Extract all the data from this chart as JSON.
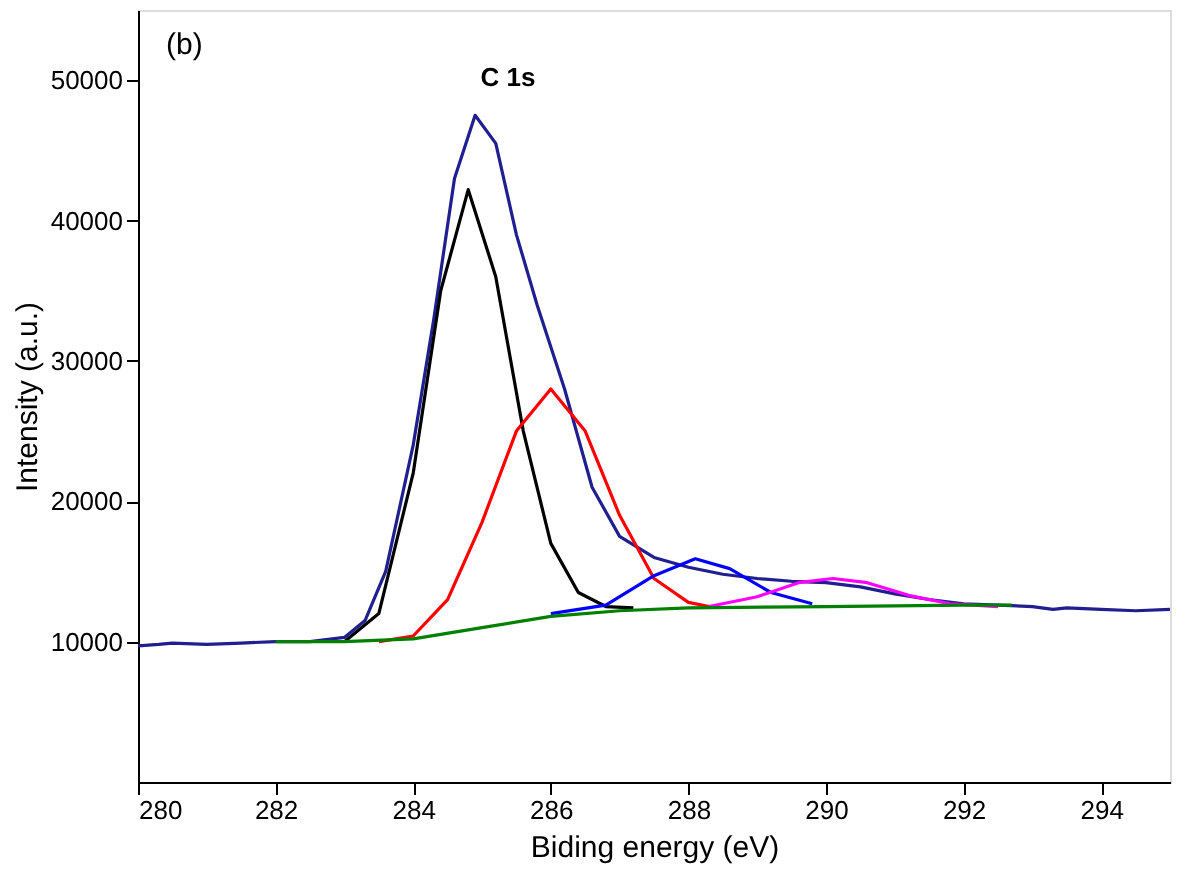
{
  "chart_data": {
    "type": "line",
    "xlabel": "Biding energy (eV)",
    "ylabel": "Intensity (a.u.)",
    "xlim": [
      280,
      295
    ],
    "xticks": [
      280,
      282,
      284,
      286,
      288,
      290,
      292,
      294
    ],
    "ylim": [
      0,
      55000
    ],
    "yticks": [
      10000,
      20000,
      30000,
      40000,
      50000
    ],
    "grid": false,
    "marker": "none",
    "line_style": "solid",
    "annotations": [
      "(b)",
      "C 1s"
    ],
    "series": [
      {
        "color": "#1f1f8f",
        "x": [
          280,
          280.3,
          280.5,
          281,
          281.5,
          282,
          282.5,
          283,
          283.3,
          283.6,
          284,
          284.3,
          284.6,
          284.9,
          285.2,
          285.5,
          285.8,
          286.2,
          286.6,
          287,
          287.5,
          288,
          288.5,
          289,
          289.5,
          290,
          290.5,
          291,
          291.5,
          292,
          292.5,
          293,
          293.3,
          293.5,
          294,
          294.5,
          295
        ],
        "values": [
          9700,
          9800,
          9900,
          9800,
          9900,
          10000,
          10000,
          10300,
          11500,
          15000,
          24000,
          33000,
          43000,
          47500,
          45500,
          39000,
          34000,
          28000,
          21000,
          17500,
          16000,
          15300,
          14800,
          14500,
          14300,
          14200,
          13900,
          13400,
          13000,
          12700,
          12600,
          12500,
          12300,
          12400,
          12300,
          12200,
          12300
        ]
      },
      {
        "color": "#000000",
        "x": [
          283,
          283.5,
          284,
          284.4,
          284.8,
          285.2,
          285.6,
          286,
          286.4,
          286.8,
          287.2
        ],
        "values": [
          10000,
          12000,
          22000,
          35000,
          42200,
          36000,
          25000,
          17000,
          13500,
          12500,
          12400
        ]
      },
      {
        "color": "#ff0000",
        "x": [
          283.5,
          284,
          284.5,
          285,
          285.5,
          286,
          286.5,
          287,
          287.5,
          288,
          288.3
        ],
        "values": [
          10000,
          10400,
          13000,
          18500,
          25000,
          28000,
          25000,
          19000,
          14500,
          12800,
          12500
        ]
      },
      {
        "color": "#0000ff",
        "x": [
          286,
          286.8,
          287.5,
          288.1,
          288.6,
          289.2,
          289.8
        ],
        "values": [
          12000,
          12600,
          14700,
          15900,
          15200,
          13500,
          12700
        ]
      },
      {
        "color": "#ff00ff",
        "x": [
          288.3,
          289,
          289.6,
          290.1,
          290.6,
          291.2,
          291.8,
          292.5
        ],
        "values": [
          12500,
          13200,
          14200,
          14500,
          14200,
          13300,
          12700,
          12500
        ]
      },
      {
        "color": "#008000",
        "x": [
          282,
          283,
          284,
          285,
          286,
          287,
          288,
          290,
          292,
          292.7
        ],
        "values": [
          10000,
          10000,
          10200,
          11000,
          11800,
          12200,
          12400,
          12500,
          12600,
          12600
        ]
      }
    ]
  }
}
